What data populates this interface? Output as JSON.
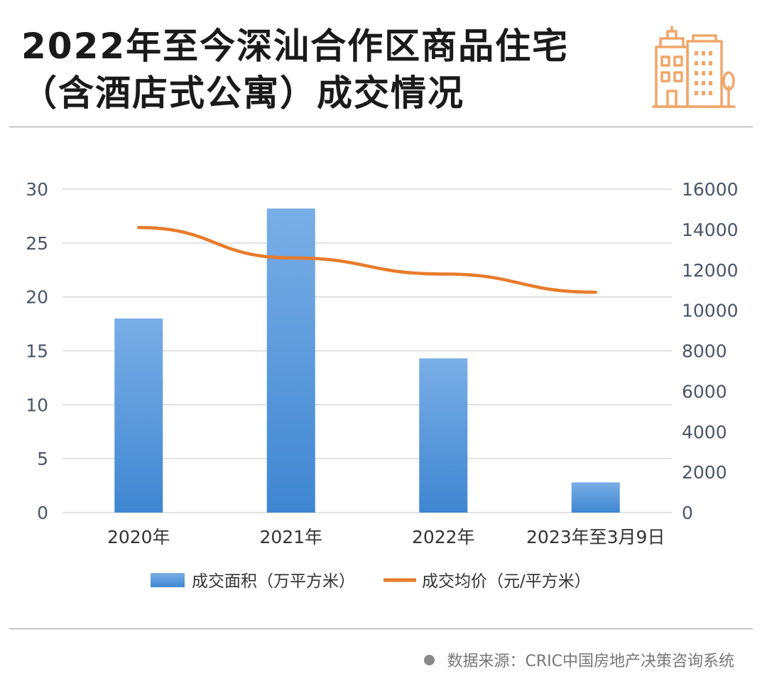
{
  "title_lines": [
    "2022年至今深汕合作区商品住宅",
    "（含酒店式公寓）成交情况"
  ],
  "source": "数据来源：CRIC中国房地产决策咨询系统",
  "colors": {
    "bar": "#4a8fd6",
    "bar_light": "#7aaee6",
    "line": "#e87b2a",
    "icon": "#f0a66a",
    "grid": "#d9d9d9",
    "axis_text": "#4a5568"
  },
  "icons": {
    "logo": "buildings-icon",
    "footer": "bullet-dot-icon"
  },
  "chart_data": {
    "type": "bar+line",
    "categories": [
      "2020年",
      "2021年",
      "2022年",
      "2023年至3月9日"
    ],
    "series": [
      {
        "name": "成交面积（万平方米）",
        "type": "bar",
        "axis": "left",
        "values": [
          18.0,
          28.2,
          14.3,
          2.8
        ]
      },
      {
        "name": "成交均价（元/平方米）",
        "type": "line",
        "axis": "right",
        "values": [
          14100,
          12600,
          11800,
          10900
        ]
      }
    ],
    "y_left": {
      "lim": [
        0,
        30
      ],
      "ticks": [
        "0",
        "5",
        "10",
        "15",
        "20",
        "25",
        "30"
      ]
    },
    "y_right": {
      "lim": [
        0,
        16000
      ],
      "ticks": [
        "0",
        "2000",
        "4000",
        "6000",
        "8000",
        "10000",
        "12000",
        "14000",
        "16000"
      ]
    },
    "grid": true,
    "legend": "bottom"
  }
}
